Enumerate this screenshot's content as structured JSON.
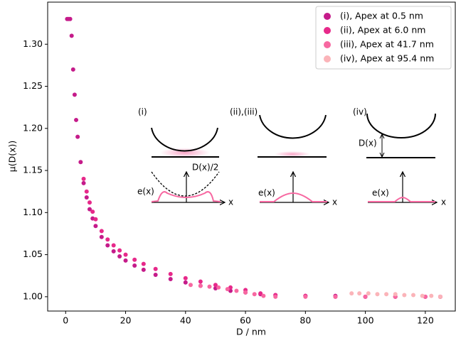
{
  "chart_data": {
    "type": "scatter",
    "xlabel": "D  /  nm",
    "ylabel": "μ(D(x))",
    "xlim": [
      -6,
      130
    ],
    "ylim": [
      0.983,
      1.35
    ],
    "xticks": [
      0,
      20,
      40,
      60,
      80,
      100,
      120
    ],
    "yticks": [
      {
        "value": 1.0,
        "label": "1.00"
      },
      {
        "value": 1.05,
        "label": "1.05"
      },
      {
        "value": 1.1,
        "label": "1.10"
      },
      {
        "value": 1.15,
        "label": "1.15"
      },
      {
        "value": 1.2,
        "label": "1.20"
      },
      {
        "value": 1.25,
        "label": "1.25"
      },
      {
        "value": 1.3,
        "label": "1.30"
      }
    ],
    "legend": "upper right",
    "series": [
      {
        "name": "(i), Apex at 0.5 nm",
        "color": "#c51b8a",
        "x": [
          0.5,
          1,
          1.5,
          2,
          2.5,
          3,
          3.5,
          4,
          5,
          6,
          7,
          8,
          9,
          10,
          12,
          14,
          16,
          18,
          20,
          23,
          26,
          30,
          35,
          40,
          45,
          50,
          55,
          60,
          65,
          70,
          80,
          90,
          100,
          110,
          120,
          125
        ],
        "values": [
          1.33,
          1.33,
          1.33,
          1.31,
          1.27,
          1.24,
          1.21,
          1.19,
          1.16,
          1.135,
          1.118,
          1.104,
          1.093,
          1.084,
          1.071,
          1.061,
          1.054,
          1.048,
          1.043,
          1.037,
          1.032,
          1.026,
          1.021,
          1.017,
          1.013,
          1.01,
          1.007,
          1.005,
          1.003,
          1.002,
          1.001,
          1.001,
          1.0,
          1.0,
          1.0,
          1.0
        ]
      },
      {
        "name": "(ii), Apex at 6.0 nm",
        "color": "#e7298a",
        "x": [
          6,
          7,
          8,
          9,
          10,
          12,
          14,
          16,
          18,
          20,
          23,
          26,
          30,
          35,
          40,
          45,
          50,
          55,
          60,
          65,
          70,
          80,
          90,
          100,
          110,
          120,
          125
        ],
        "values": [
          1.14,
          1.125,
          1.112,
          1.101,
          1.092,
          1.078,
          1.068,
          1.061,
          1.055,
          1.05,
          1.044,
          1.039,
          1.033,
          1.027,
          1.022,
          1.018,
          1.014,
          1.011,
          1.008,
          1.004,
          1.002,
          1.001,
          1.0,
          1.0,
          1.0,
          1.0,
          1.0
        ]
      },
      {
        "name": "(iii), Apex at 41.7 nm",
        "color": "#f768a1",
        "x": [
          41.7,
          45,
          48,
          51,
          54,
          57,
          60,
          63,
          66,
          70,
          80,
          90,
          100,
          110,
          120,
          125
        ],
        "values": [
          1.014,
          1.013,
          1.012,
          1.011,
          1.009,
          1.007,
          1.005,
          1.003,
          1.001,
          1.0,
          1.0,
          1.0,
          1.0,
          1.0,
          1.0,
          1.0
        ]
      },
      {
        "name": "(iv), Apex at 95.4 nm",
        "color": "#fbb4b9",
        "x": [
          95.4,
          98,
          101,
          104,
          107,
          110,
          113,
          116,
          119,
          122,
          125
        ],
        "values": [
          1.004,
          1.004,
          1.004,
          1.003,
          1.003,
          1.003,
          1.002,
          1.002,
          1.001,
          1.001,
          1.0
        ]
      }
    ],
    "annotations": [
      "(i)",
      "(ii),(iii)",
      "(iv)",
      "D(x)/2",
      "e(x)",
      "x",
      "e(x)",
      "x",
      "e(x)",
      "x",
      "D(x)"
    ]
  }
}
